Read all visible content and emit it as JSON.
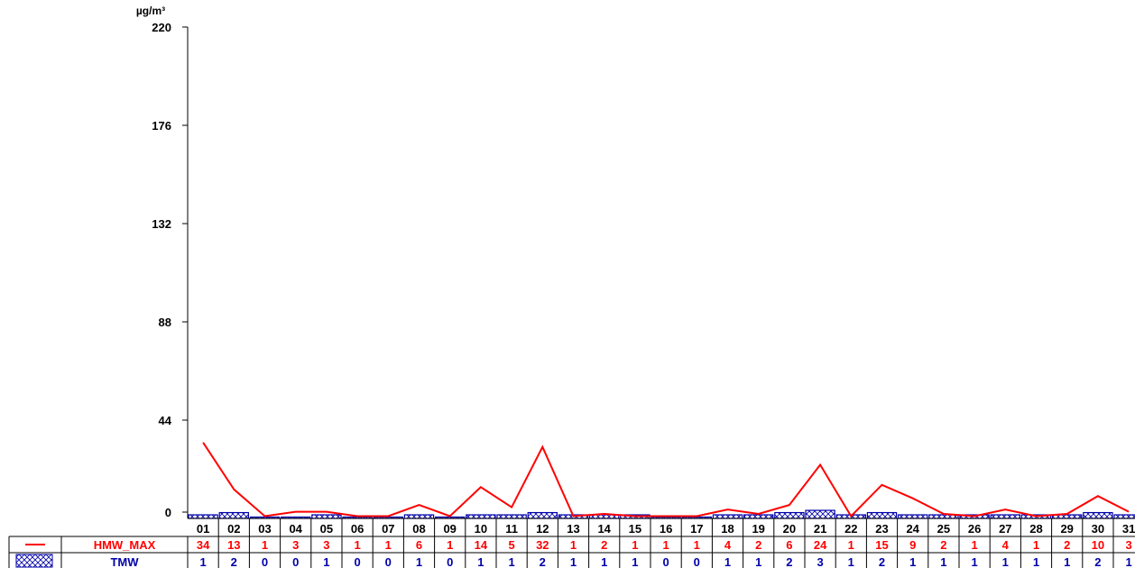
{
  "chart_data": {
    "type": "bar+line",
    "unit": "µg/m³",
    "ylim": [
      0,
      220
    ],
    "yticks": [
      0,
      44,
      88,
      132,
      176,
      220
    ],
    "categories": [
      "01",
      "02",
      "03",
      "04",
      "05",
      "06",
      "07",
      "08",
      "09",
      "10",
      "11",
      "12",
      "13",
      "14",
      "15",
      "16",
      "17",
      "18",
      "19",
      "20",
      "21",
      "22",
      "23",
      "24",
      "25",
      "26",
      "27",
      "28",
      "29",
      "30",
      "31"
    ],
    "series": [
      {
        "name": "HMW_MAX",
        "kind": "line",
        "color": "#ff0000",
        "values": [
          34,
          13,
          1,
          3,
          3,
          1,
          1,
          6,
          1,
          14,
          5,
          32,
          1,
          2,
          1,
          1,
          1,
          4,
          2,
          6,
          24,
          1,
          15,
          9,
          2,
          1,
          4,
          1,
          2,
          10,
          3
        ]
      },
      {
        "name": "TMW",
        "kind": "bar",
        "color": "#0000aa",
        "values": [
          1,
          2,
          0,
          0,
          1,
          0,
          0,
          1,
          0,
          1,
          1,
          2,
          1,
          1,
          1,
          0,
          0,
          1,
          1,
          2,
          3,
          1,
          2,
          1,
          1,
          1,
          1,
          1,
          1,
          2,
          1
        ]
      }
    ]
  }
}
